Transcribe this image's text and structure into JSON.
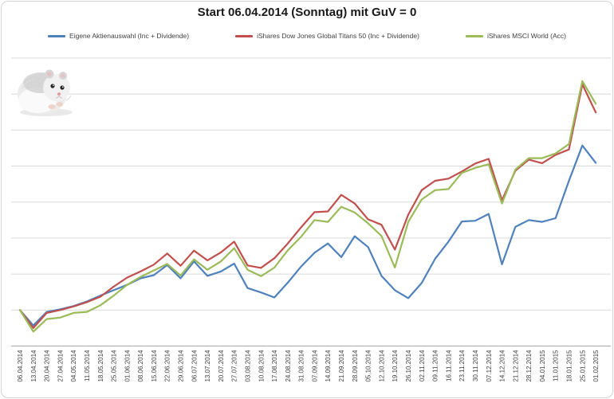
{
  "title": "Start 06.04.2014 (Sonntag) mit GuV = 0",
  "legend": [
    {
      "label": "Eigene Aktienauswahl (Inc + Dividende)",
      "color": "#4F81BD"
    },
    {
      "label": "iShares Dow Jones Global Titans 50 (Inc + Dividende)",
      "color": "#C0504D"
    },
    {
      "label": "iShares MSCI World (Acc)",
      "color": "#9BBB59"
    }
  ],
  "decorations": {
    "hamster_image": "hamster-photo-top-left"
  },
  "chart_data": {
    "type": "line",
    "title": "Start 06.04.2014 (Sonntag) mit GuV = 0",
    "xlabel": "",
    "ylabel": "",
    "y_axis_labels_visible": false,
    "grid": "horizontal",
    "legend_position": "top",
    "ylim": [
      -1,
      7
    ],
    "y_unit_note": "no y-axis labels in source; values are in gridline units relative to start value 0 (GuV = 0)",
    "categories": [
      "06.04.2014",
      "13.04.2014",
      "20.04.2014",
      "27.04.2014",
      "04.05.2014",
      "11.05.2014",
      "18.05.2014",
      "25.05.2014",
      "01.06.2014",
      "08.06.2014",
      "15.06.2014",
      "22.06.2014",
      "29.06.2014",
      "06.07.2014",
      "13.07.2014",
      "20.07.2014",
      "27.07.2014",
      "03.08.2014",
      "10.08.2014",
      "17.08.2014",
      "24.08.2014",
      "31.08.2014",
      "07.09.2014",
      "14.09.2014",
      "21.09.2014",
      "28.09.2014",
      "05.10.2014",
      "12.10.2014",
      "19.10.2014",
      "26.10.2014",
      "02.11.2014",
      "09.11.2014",
      "16.11.2014",
      "23.11.2014",
      "30.11.2014",
      "07.12.2014",
      "14.12.2014",
      "21.12.2014",
      "28.12.2014",
      "04.01.2015",
      "11.01.2015",
      "18.01.2015",
      "25.01.2015",
      "01.02.2015"
    ],
    "series": [
      {
        "name": "Eigene Aktienauswahl (Inc + Dividende)",
        "color": "#4F81BD",
        "values": [
          0,
          -0.43,
          -0.05,
          0.02,
          0.11,
          0.24,
          0.4,
          0.55,
          0.7,
          0.88,
          0.97,
          1.25,
          0.88,
          1.35,
          0.95,
          1.07,
          1.29,
          0.61,
          0.49,
          0.35,
          0.76,
          1.21,
          1.59,
          1.85,
          1.47,
          2.05,
          1.75,
          0.95,
          0.55,
          0.33,
          0.75,
          1.42,
          1.9,
          2.46,
          2.48,
          2.67,
          1.27,
          2.31,
          2.5,
          2.45,
          2.55,
          3.59,
          4.57,
          4.09
        ]
      },
      {
        "name": "iShares Dow Jones Global Titans 50 (Inc + Dividende)",
        "color": "#C0504D",
        "values": [
          0,
          -0.5,
          -0.08,
          0.0,
          0.1,
          0.22,
          0.37,
          0.65,
          0.9,
          1.07,
          1.26,
          1.57,
          1.23,
          1.65,
          1.38,
          1.6,
          1.9,
          1.24,
          1.17,
          1.44,
          1.85,
          2.3,
          2.72,
          2.74,
          3.2,
          2.96,
          2.52,
          2.37,
          1.68,
          2.65,
          3.33,
          3.59,
          3.65,
          3.85,
          4.07,
          4.2,
          3.05,
          3.87,
          4.18,
          4.08,
          4.31,
          4.46,
          6.27,
          5.49
        ]
      },
      {
        "name": "iShares MSCI World (Acc)",
        "color": "#9BBB59",
        "values": [
          0,
          -0.6,
          -0.25,
          -0.21,
          -0.08,
          -0.05,
          0.13,
          0.4,
          0.7,
          0.92,
          1.1,
          1.28,
          0.96,
          1.41,
          1.12,
          1.35,
          1.72,
          1.12,
          0.94,
          1.18,
          1.66,
          2.04,
          2.5,
          2.45,
          2.87,
          2.71,
          2.41,
          2.06,
          1.18,
          2.45,
          3.07,
          3.33,
          3.36,
          3.81,
          3.95,
          4.05,
          2.96,
          3.9,
          4.22,
          4.22,
          4.35,
          4.61,
          6.36,
          5.73
        ]
      }
    ]
  },
  "style": {
    "gridline_color": "#D9D9D9",
    "axis_line_color": "#A6A6A6",
    "tick_label_color": "#404040",
    "frame_border_color": "#D3D3D3",
    "background": "#FFFFFF"
  }
}
